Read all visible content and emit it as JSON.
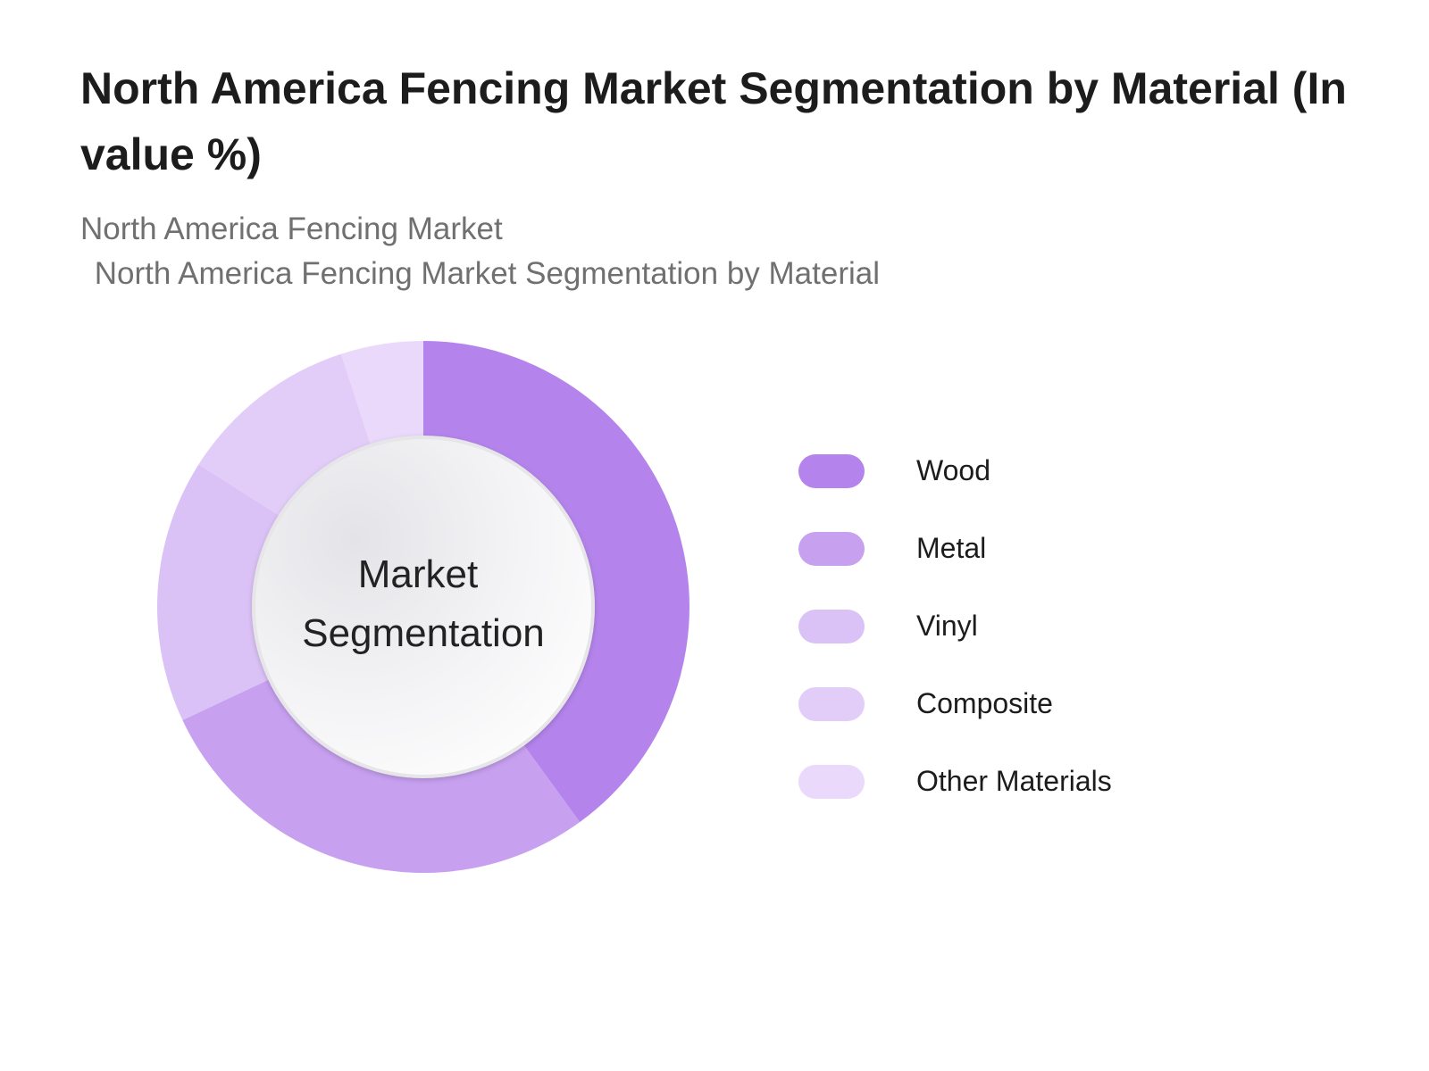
{
  "chart_data": {
    "type": "pie",
    "title": "North America Fencing Market Segmentation by Material (In value %)",
    "subtitle": "North America Fencing Market",
    "subtitle_2": " North America Fencing Market Segmentation by Material",
    "center_label": [
      "Market",
      "Segmentation"
    ],
    "donut": true,
    "legend_position": "right",
    "start": "top",
    "direction": "clockwise",
    "slices": [
      {
        "label": "Wood",
        "value": 40,
        "color": "#b484ec"
      },
      {
        "label": "Metal",
        "value": 28,
        "color": "#c7a0f0"
      },
      {
        "label": "Vinyl",
        "value": 16,
        "color": "#dbc2f6"
      },
      {
        "label": "Composite",
        "value": 11,
        "color": "#e2cdf8"
      },
      {
        "label": "Other Materials",
        "value": 5,
        "color": "#ead9fb"
      }
    ]
  }
}
